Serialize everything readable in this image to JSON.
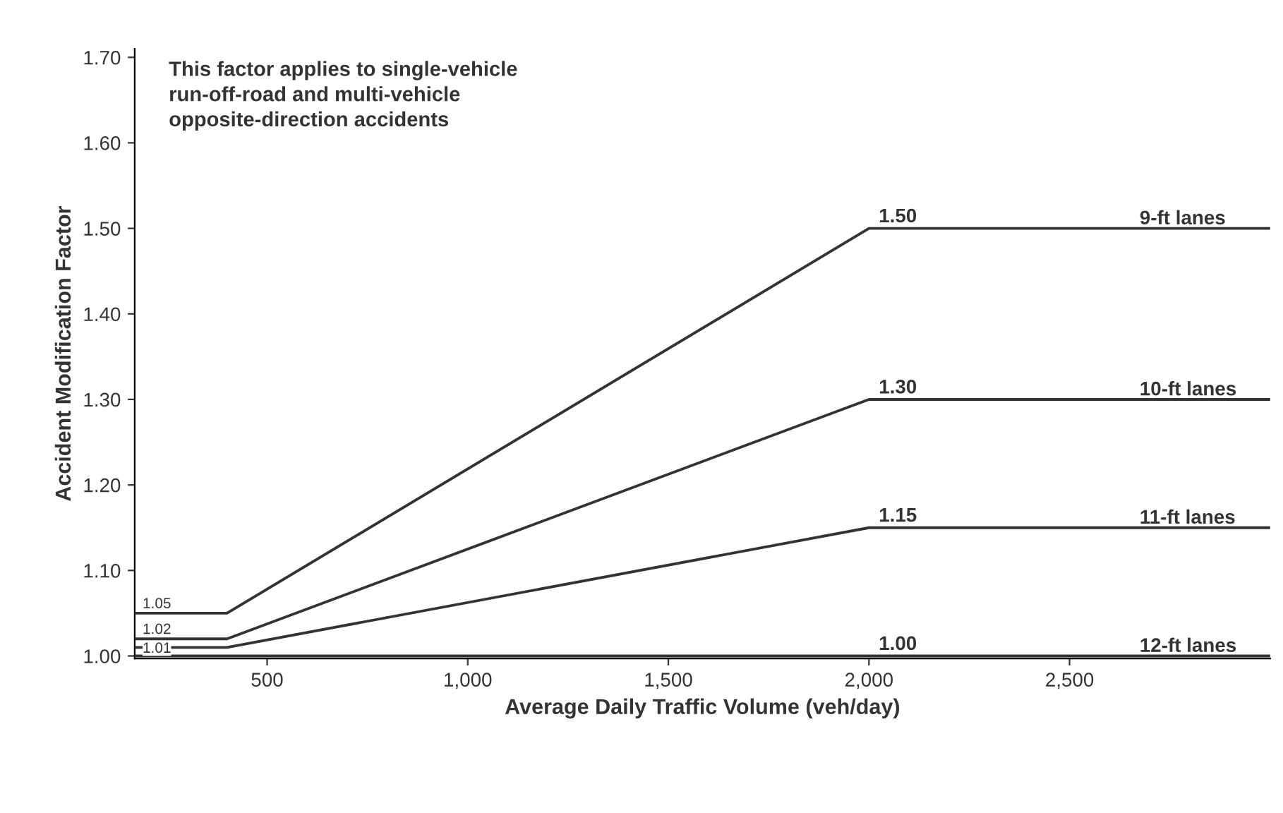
{
  "chart_data": {
    "type": "line",
    "xlabel": "Average Daily Traffic Volume (veh/day)",
    "ylabel": "Accident Modification Factor",
    "x": [
      170,
      400,
      2000,
      3000
    ],
    "series": [
      {
        "name": "9-ft lanes",
        "color": "#333333",
        "values": [
          1.05,
          1.05,
          1.5,
          1.5
        ],
        "value_labels": [
          "1.05",
          null,
          "1.50",
          null
        ]
      },
      {
        "name": "10-ft lanes",
        "color": "#333333",
        "values": [
          1.02,
          1.02,
          1.3,
          1.3
        ],
        "value_labels": [
          "1.02",
          null,
          "1.30",
          null
        ]
      },
      {
        "name": "11-ft lanes",
        "color": "#333333",
        "values": [
          1.01,
          1.01,
          1.15,
          1.15
        ],
        "value_labels": [
          "1.01",
          null,
          "1.15",
          null
        ]
      },
      {
        "name": "12-ft lanes",
        "color": "#333333",
        "values": [
          1.0,
          1.0,
          1.0,
          1.0
        ],
        "value_labels": [
          null,
          null,
          "1.00",
          null
        ]
      }
    ],
    "xlim": [
      170,
      3000
    ],
    "ylim": [
      0.997,
      1.71
    ],
    "xticks": [
      500,
      {
        "value": 1000,
        "label": "1,000"
      },
      {
        "value": 1500,
        "label": "1,500"
      },
      {
        "value": 2000,
        "label": "2,000"
      },
      {
        "value": 2500,
        "label": "2,500"
      }
    ],
    "yticks": [
      {
        "value": 1.0,
        "label": "1.00"
      },
      {
        "value": 1.1,
        "label": "1.10"
      },
      {
        "value": 1.2,
        "label": "1.20"
      },
      {
        "value": 1.3,
        "label": "1.30"
      },
      {
        "value": 1.4,
        "label": "1.40"
      },
      {
        "value": 1.5,
        "label": "1.50"
      },
      {
        "value": 1.6,
        "label": "1.60"
      },
      {
        "value": 1.7,
        "label": "1.70"
      }
    ],
    "grid": false,
    "legend": false,
    "marker": "none",
    "line_style": "solid",
    "annotations": [
      "This factor applies to single-vehicle\nrun-off-road and multi-vehicle\nopposite-direction accidents"
    ]
  }
}
